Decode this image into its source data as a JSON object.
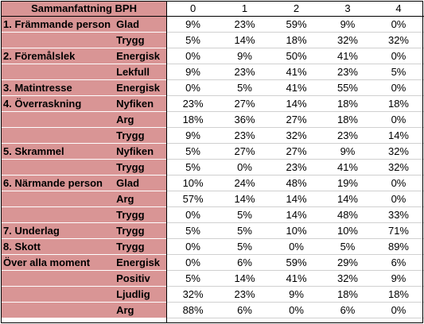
{
  "table": {
    "title": "Sammanfattning BPH",
    "columns": [
      "0",
      "1",
      "2",
      "3",
      "4"
    ],
    "rows": [
      {
        "moment": "1. Främmande person",
        "emotion": "Glad",
        "values": [
          "9%",
          "23%",
          "59%",
          "9%",
          "0%"
        ]
      },
      {
        "moment": "",
        "emotion": "Trygg",
        "values": [
          "5%",
          "14%",
          "18%",
          "32%",
          "32%"
        ]
      },
      {
        "moment": "2. Föremålslek",
        "emotion": "Energisk",
        "values": [
          "0%",
          "9%",
          "50%",
          "41%",
          "0%"
        ]
      },
      {
        "moment": "",
        "emotion": "Lekfull",
        "values": [
          "9%",
          "23%",
          "41%",
          "23%",
          "5%"
        ]
      },
      {
        "moment": "3. Matintresse",
        "emotion": "Energisk",
        "values": [
          "0%",
          "5%",
          "41%",
          "55%",
          "0%"
        ]
      },
      {
        "moment": "4. Överraskning",
        "emotion": "Nyfiken",
        "values": [
          "23%",
          "27%",
          "14%",
          "18%",
          "18%"
        ]
      },
      {
        "moment": "",
        "emotion": "Arg",
        "values": [
          "18%",
          "36%",
          "27%",
          "18%",
          "0%"
        ]
      },
      {
        "moment": "",
        "emotion": "Trygg",
        "values": [
          "9%",
          "23%",
          "32%",
          "23%",
          "14%"
        ]
      },
      {
        "moment": "5. Skrammel",
        "emotion": "Nyfiken",
        "values": [
          "5%",
          "27%",
          "27%",
          "9%",
          "32%"
        ]
      },
      {
        "moment": "",
        "emotion": "Trygg",
        "values": [
          "5%",
          "0%",
          "23%",
          "41%",
          "32%"
        ]
      },
      {
        "moment": "6. Närmande person",
        "emotion": "Glad",
        "values": [
          "10%",
          "24%",
          "48%",
          "19%",
          "0%"
        ]
      },
      {
        "moment": "",
        "emotion": "Arg",
        "values": [
          "57%",
          "14%",
          "14%",
          "14%",
          "0%"
        ]
      },
      {
        "moment": "",
        "emotion": "Trygg",
        "values": [
          "0%",
          "5%",
          "14%",
          "48%",
          "33%"
        ]
      },
      {
        "moment": "7. Underlag",
        "emotion": "Trygg",
        "values": [
          "5%",
          "5%",
          "10%",
          "10%",
          "71%"
        ]
      },
      {
        "moment": "8. Skott",
        "emotion": "Trygg",
        "values": [
          "0%",
          "5%",
          "0%",
          "5%",
          "89%"
        ]
      },
      {
        "moment": "Över alla moment",
        "emotion": "Energisk",
        "values": [
          "0%",
          "6%",
          "59%",
          "29%",
          "6%"
        ]
      },
      {
        "moment": "",
        "emotion": "Positiv",
        "values": [
          "5%",
          "14%",
          "41%",
          "32%",
          "9%"
        ]
      },
      {
        "moment": "",
        "emotion": "Ljudlig",
        "values": [
          "32%",
          "23%",
          "9%",
          "18%",
          "18%"
        ]
      },
      {
        "moment": "",
        "emotion": "Arg",
        "values": [
          "88%",
          "6%",
          "0%",
          "6%",
          "0%"
        ]
      }
    ]
  },
  "colors": {
    "label_background": "#d99595",
    "value_background": "#ffffff",
    "border": "#000000"
  }
}
